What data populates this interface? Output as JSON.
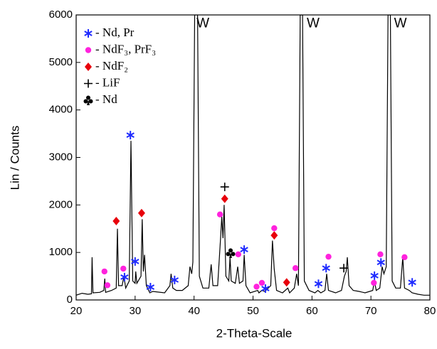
{
  "chart_data": {
    "type": "line",
    "x_label": "2-Theta-Scale",
    "y_label": "Lin / Counts",
    "xlim": [
      20,
      80
    ],
    "ylim": [
      0,
      6000
    ],
    "xticks": [
      20,
      30,
      40,
      50,
      60,
      70,
      80
    ],
    "yticks": [
      0,
      1000,
      2000,
      3000,
      4000,
      5000,
      6000
    ],
    "color": "#000000",
    "x": [
      20,
      21,
      22,
      22.6,
      22.7,
      22.85,
      24,
      24.7,
      24.85,
      25,
      26,
      26.8,
      27,
      27.2,
      27.8,
      28.1,
      28.4,
      29.0,
      29.3,
      29.6,
      30.0,
      30.1,
      30.3,
      31.0,
      31.2,
      31.4,
      31.6,
      31.9,
      32.5,
      33,
      35,
      35.9,
      36.1,
      36.4,
      37,
      38,
      39,
      39.3,
      39.6,
      39.8,
      40.1,
      40.6,
      40.9,
      41.5,
      42.5,
      42.9,
      43.2,
      44.0,
      44.5,
      44.7,
      44.9,
      45.1,
      45.4,
      45.9,
      46.1,
      46.3,
      47.0,
      47.4,
      47.7,
      48.3,
      48.5,
      48.8,
      49.5,
      50.8,
      51.0,
      51.5,
      52,
      53.0,
      53.3,
      53.6,
      54,
      55,
      55.9,
      56.2,
      57,
      57.4,
      57.7,
      58.0,
      58.4,
      58.7,
      59.5,
      60.5,
      61.0,
      61.5,
      62.2,
      62.5,
      62.8,
      64,
      65,
      65.5,
      65.8,
      66.0,
      66.3,
      67,
      68,
      69,
      70.3,
      70.6,
      70.9,
      71.5,
      71.9,
      72.2,
      72.6,
      72.9,
      73.3,
      73.6,
      74.2,
      75.0,
      75.4,
      75.7,
      76.5,
      77,
      78,
      79,
      80
    ],
    "values": [
      100,
      140,
      120,
      130,
      900,
      150,
      160,
      200,
      450,
      160,
      200,
      250,
      1500,
      300,
      300,
      500,
      250,
      400,
      3350,
      400,
      350,
      600,
      350,
      500,
      1700,
      600,
      950,
      300,
      150,
      180,
      150,
      300,
      550,
      250,
      200,
      200,
      300,
      700,
      550,
      800,
      6000,
      6000,
      500,
      250,
      250,
      750,
      300,
      300,
      1300,
      1750,
      1300,
      2000,
      500,
      400,
      900,
      400,
      350,
      700,
      350,
      400,
      950,
      300,
      150,
      200,
      150,
      200,
      180,
      300,
      1250,
      650,
      200,
      150,
      250,
      150,
      250,
      550,
      300,
      6000,
      6000,
      400,
      200,
      150,
      200,
      150,
      200,
      550,
      200,
      150,
      200,
      500,
      600,
      900,
      300,
      200,
      180,
      150,
      200,
      400,
      200,
      250,
      700,
      550,
      700,
      6000,
      6000,
      400,
      250,
      250,
      900,
      250,
      200,
      150,
      120,
      100,
      100
    ],
    "annotations": [
      {
        "text": "W",
        "x": 41.5,
        "y": 5810
      },
      {
        "text": "W",
        "x": 60.2,
        "y": 5810
      },
      {
        "text": "W",
        "x": 75.0,
        "y": 5810
      }
    ],
    "series": [
      {
        "name": "- Nd, Pr",
        "marker": "star",
        "color": "#1f2bff",
        "x": [
          29.2,
          28.2,
          30.0,
          32.6,
          36.7,
          48.5,
          52.1,
          61.1,
          62.4,
          70.6,
          71.7,
          77.0
        ],
        "values": [
          3470,
          480,
          810,
          270,
          420,
          1060,
          240,
          340,
          670,
          510,
          790,
          370
        ]
      },
      {
        "name": "- NdF₃, PrF₃",
        "marker": "circle",
        "color": "#ff22dd",
        "x": [
          24.8,
          25.3,
          28.0,
          44.4,
          47.5,
          50.6,
          51.5,
          53.6,
          57.2,
          62.8,
          70.5,
          71.6,
          75.7
        ],
        "values": [
          600,
          310,
          660,
          1800,
          960,
          280,
          360,
          1510,
          670,
          910,
          360,
          960,
          900
        ]
      },
      {
        "name": "- NdF₂",
        "marker": "diamond",
        "color": "#e8000b",
        "x": [
          26.8,
          31.1,
          45.2,
          53.6,
          55.7
        ],
        "values": [
          1660,
          1830,
          2130,
          1360,
          370
        ]
      },
      {
        "name": "- LiF",
        "marker": "plus",
        "color": "#000000",
        "x": [
          45.2,
          65.4
        ],
        "values": [
          2380,
          670
        ]
      },
      {
        "name": "- Nd",
        "marker": "club",
        "color": "#000000",
        "x": [
          46.2
        ],
        "values": [
          990
        ]
      }
    ]
  }
}
